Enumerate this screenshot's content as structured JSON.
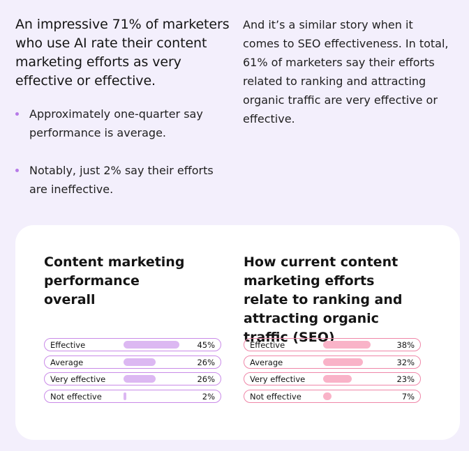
{
  "intro": {
    "headline": "An impressive 71% of marketers who use AI rate their content marketing efforts as very effective or effective.",
    "bullets": [
      "Approximately one-quarter say performance is average.",
      "Notably, just 2% say their efforts are ineffective."
    ],
    "right_text": "And it’s a similar story when it comes to SEO effectiveness. In total, 61% of marketers say their efforts related to ranking and attracting organic traffic are very effective or effective."
  },
  "colors": {
    "bullet": "#b77ae8",
    "left_border": "#c98ae8",
    "left_fill": "#dcb8f2",
    "right_border": "#ef86a8",
    "right_fill": "#f9b3c8"
  },
  "chart_data": [
    {
      "type": "bar",
      "title": "Content marketing performance overall",
      "categories": [
        "Effective",
        "Average",
        "Very effective",
        "Not effective"
      ],
      "values": [
        45,
        26,
        26,
        2
      ],
      "value_labels": [
        "45%",
        "26%",
        "26%",
        "2%"
      ],
      "xlim": [
        0,
        45
      ]
    },
    {
      "type": "bar",
      "title": "How current content marketing efforts relate to ranking and attracting organic traffic (SEO)",
      "categories": [
        "Effective",
        "Average",
        "Very effective",
        "Not effective"
      ],
      "values": [
        38,
        32,
        23,
        7
      ],
      "value_labels": [
        "38%",
        "32%",
        "23%",
        "7%"
      ],
      "xlim": [
        0,
        45
      ]
    }
  ]
}
